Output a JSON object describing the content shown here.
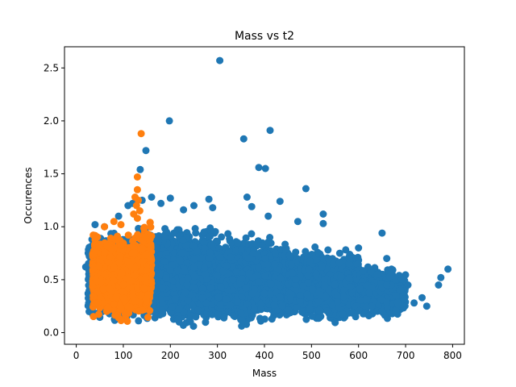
{
  "chart_data": {
    "type": "scatter",
    "title": "Mass vs t2",
    "xlabel": "Mass",
    "ylabel": "Occurences",
    "xlim": [
      -25,
      825
    ],
    "ylim": [
      -0.11,
      2.7
    ],
    "xticks": [
      0,
      100,
      200,
      300,
      400,
      500,
      600,
      700,
      800
    ],
    "yticks": [
      0.0,
      0.5,
      1.0,
      1.5,
      2.0,
      2.5
    ],
    "grid": false,
    "legend": "none",
    "series": [
      {
        "color": "#1f77b4",
        "points": [
          [
            305,
            2.57
          ],
          [
            198,
            2.0
          ],
          [
            412,
            1.91
          ],
          [
            356,
            1.83
          ],
          [
            148,
            1.72
          ],
          [
            388,
            1.56
          ],
          [
            402,
            1.55
          ],
          [
            136,
            1.54
          ],
          [
            488,
            1.36
          ],
          [
            363,
            1.28
          ],
          [
            433,
            1.24
          ],
          [
            282,
            1.26
          ],
          [
            525,
            1.12
          ],
          [
            373,
            1.19
          ],
          [
            408,
            1.1
          ],
          [
            471,
            1.05
          ],
          [
            525,
            1.03
          ],
          [
            650,
            0.94
          ],
          [
            290,
            1.18
          ],
          [
            180,
            1.22
          ],
          [
            200,
            1.27
          ],
          [
            228,
            1.16
          ],
          [
            250,
            1.2
          ],
          [
            160,
            1.28
          ],
          [
            140,
            1.25
          ],
          [
            775,
            0.52
          ],
          [
            790,
            0.6
          ],
          [
            735,
            0.33
          ],
          [
            770,
            0.45
          ],
          [
            745,
            0.25
          ],
          [
            705,
            0.45
          ],
          [
            718,
            0.28
          ],
          [
            690,
            0.4
          ],
          [
            670,
            0.6
          ],
          [
            660,
            0.7
          ],
          [
            640,
            0.55
          ],
          [
            620,
            0.62
          ],
          [
            660,
            0.45
          ],
          [
            680,
            0.35
          ],
          [
            600,
            0.8
          ],
          [
            580,
            0.7
          ],
          [
            560,
            0.75
          ],
          [
            20,
            0.62
          ],
          [
            30,
            0.8
          ],
          [
            28,
            0.4
          ],
          [
            40,
            1.02
          ],
          [
            60,
            1.0
          ],
          [
            90,
            1.1
          ],
          [
            110,
            1.2
          ],
          [
            120,
            1.22
          ]
        ],
        "clouds": [
          {
            "x": [
              25,
              130
            ],
            "y": [
              0.05,
              1.0
            ],
            "n": 900
          },
          {
            "x": [
              130,
              300
            ],
            "y": [
              0.03,
              1.05
            ],
            "n": 2600
          },
          {
            "x": [
              300,
              450
            ],
            "y": [
              0.03,
              0.95
            ],
            "n": 1900
          },
          {
            "x": [
              450,
              600
            ],
            "y": [
              0.05,
              0.85
            ],
            "n": 1300
          },
          {
            "x": [
              600,
              700
            ],
            "y": [
              0.1,
              0.65
            ],
            "n": 500
          }
        ]
      },
      {
        "color": "#ff7f0e",
        "points": [
          [
            138,
            1.88
          ],
          [
            130,
            1.47
          ],
          [
            130,
            1.35
          ],
          [
            125,
            1.28
          ],
          [
            132,
            1.25
          ],
          [
            128,
            1.2
          ],
          [
            135,
            1.15
          ],
          [
            122,
            1.12
          ],
          [
            80,
            1.05
          ],
          [
            60,
            1.0
          ],
          [
            130,
            1.08
          ],
          [
            95,
            1.02
          ]
        ],
        "clouds": [
          {
            "x": [
              35,
              140
            ],
            "y": [
              0.08,
              0.98
            ],
            "n": 1500
          },
          {
            "x": [
              140,
              160
            ],
            "y": [
              0.05,
              1.15
            ],
            "n": 250
          }
        ]
      }
    ]
  }
}
